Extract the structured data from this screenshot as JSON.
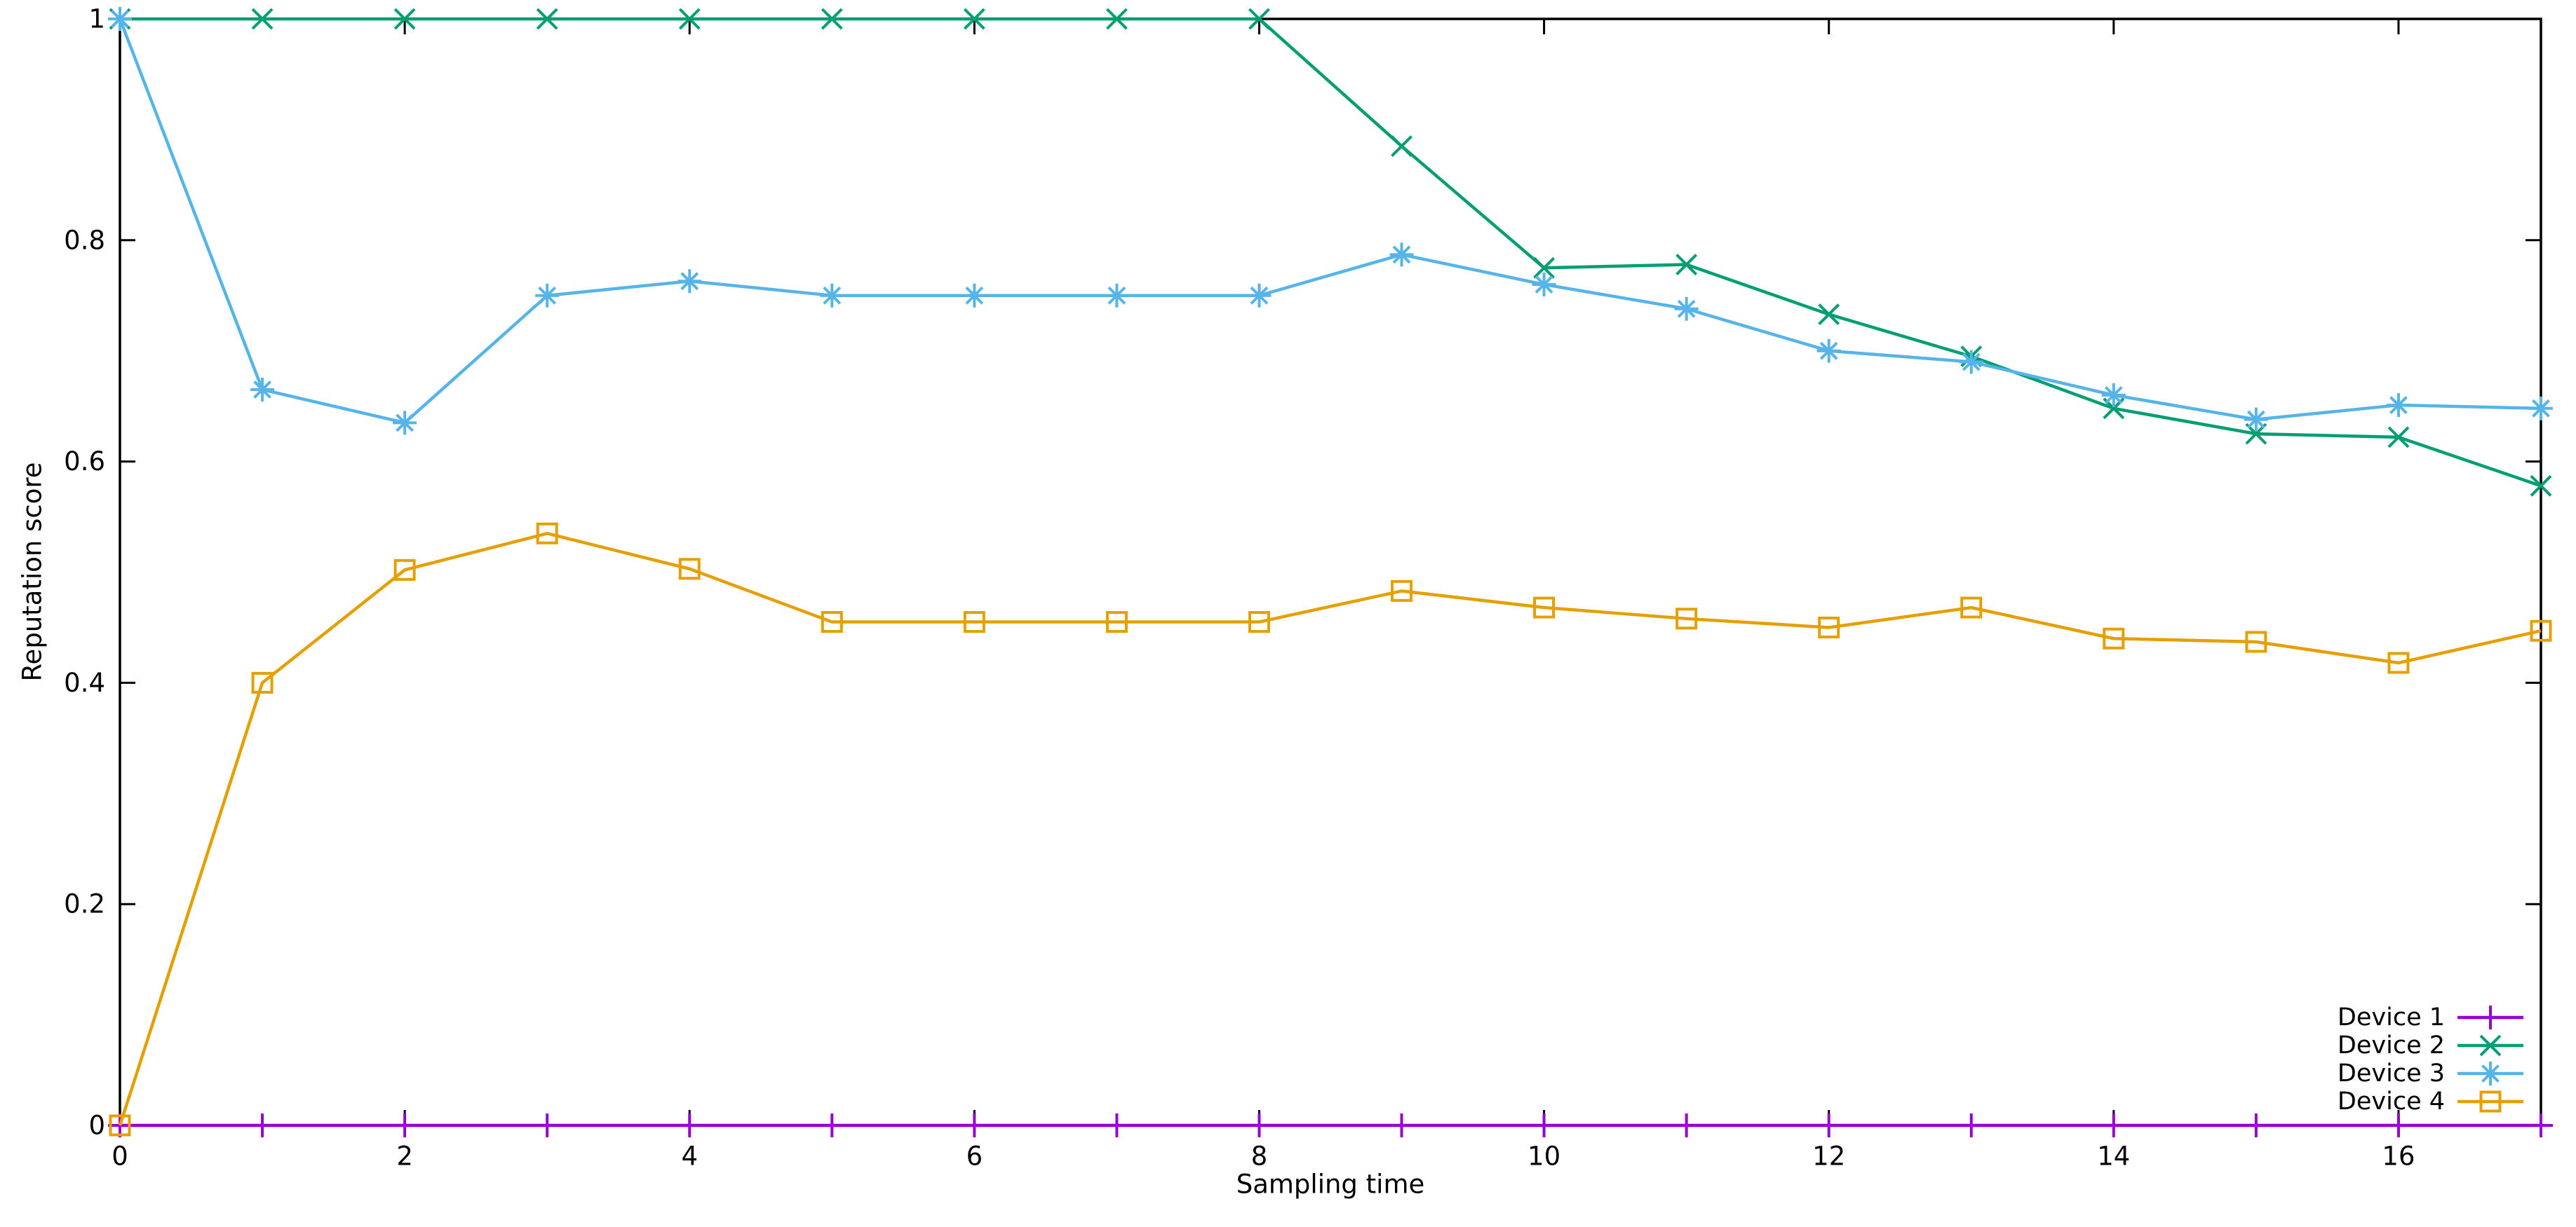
{
  "chart_data": {
    "type": "line",
    "title": "",
    "xlabel": "Sampling time",
    "ylabel": "Reputation score",
    "xlim": [
      0,
      17
    ],
    "ylim": [
      0,
      1
    ],
    "x_ticks": [
      0,
      2,
      4,
      6,
      8,
      10,
      12,
      14,
      16
    ],
    "x_tick_labels": [
      "0",
      "2",
      "4",
      "6",
      "8",
      "10",
      "12",
      "14",
      "16"
    ],
    "y_ticks": [
      0,
      0.2,
      0.4,
      0.6,
      0.8,
      1
    ],
    "y_tick_labels": [
      "0",
      "0.2",
      "0.4",
      "0.6",
      "0.8",
      "1"
    ],
    "grid": false,
    "legend_position": "bottom-right",
    "background_color": "#ffffff",
    "axis_color": "#000000",
    "x": [
      0,
      1,
      2,
      3,
      4,
      5,
      6,
      7,
      8,
      9,
      10,
      11,
      12,
      13,
      14,
      15,
      16,
      17
    ],
    "series": [
      {
        "name": "Device 1",
        "color": "#9400d3",
        "marker": "plus",
        "values": [
          0,
          0,
          0,
          0,
          0,
          0,
          0,
          0,
          0,
          0,
          0,
          0,
          0,
          0,
          0,
          0,
          0,
          0
        ]
      },
      {
        "name": "Device 2",
        "color": "#009e73",
        "marker": "cross",
        "values": [
          1,
          1,
          1,
          1,
          1,
          1,
          1,
          1,
          1,
          0.885,
          0.775,
          0.778,
          0.733,
          0.695,
          0.648,
          0.625,
          0.622,
          0.578
        ]
      },
      {
        "name": "Device 3",
        "color": "#56b4e9",
        "marker": "asterisk",
        "values": [
          1,
          0.665,
          0.635,
          0.75,
          0.763,
          0.75,
          0.75,
          0.75,
          0.75,
          0.787,
          0.76,
          0.738,
          0.7,
          0.69,
          0.66,
          0.638,
          0.651,
          0.648
        ]
      },
      {
        "name": "Device 4",
        "color": "#e69f00",
        "marker": "square",
        "values": [
          0,
          0.4,
          0.502,
          0.535,
          0.503,
          0.455,
          0.455,
          0.455,
          0.455,
          0.483,
          0.468,
          0.458,
          0.45,
          0.468,
          0.44,
          0.437,
          0.418,
          0.447
        ]
      }
    ]
  }
}
